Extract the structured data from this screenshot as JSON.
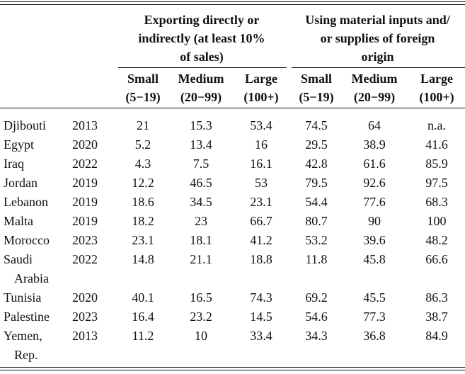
{
  "header": {
    "group1": {
      "line1": "Exporting directly or",
      "line2": "indirectly (at least 10%",
      "line3": "of sales)"
    },
    "group2": {
      "line1": "Using material inputs and/",
      "line2": "or supplies of foreign",
      "line3": "origin"
    },
    "subheaders": [
      {
        "name": "Small",
        "range": "(5−19)"
      },
      {
        "name": "Medium",
        "range": "(20−99)"
      },
      {
        "name": "Large",
        "range": "(100+)"
      },
      {
        "name": "Small",
        "range": "(5−19)"
      },
      {
        "name": "Medium",
        "range": "(20−99)"
      },
      {
        "name": "Large",
        "range": "(100+)"
      }
    ]
  },
  "rows": [
    {
      "country": [
        "Djibouti"
      ],
      "year": "2013",
      "values": [
        "21",
        "15.3",
        "53.4",
        "74.5",
        "64",
        "n.a."
      ]
    },
    {
      "country": [
        "Egypt"
      ],
      "year": "2020",
      "values": [
        "5.2",
        "13.4",
        "16",
        "29.5",
        "38.9",
        "41.6"
      ]
    },
    {
      "country": [
        "Iraq"
      ],
      "year": "2022",
      "values": [
        "4.3",
        "7.5",
        "16.1",
        "42.8",
        "61.6",
        "85.9"
      ]
    },
    {
      "country": [
        "Jordan"
      ],
      "year": "2019",
      "values": [
        "12.2",
        "46.5",
        "53",
        "79.5",
        "92.6",
        "97.5"
      ]
    },
    {
      "country": [
        "Lebanon"
      ],
      "year": "2019",
      "values": [
        "18.6",
        "34.5",
        "23.1",
        "54.4",
        "77.6",
        "68.3"
      ]
    },
    {
      "country": [
        "Malta"
      ],
      "year": "2019",
      "values": [
        "18.2",
        "23",
        "66.7",
        "80.7",
        "90",
        "100"
      ]
    },
    {
      "country": [
        "Morocco"
      ],
      "year": "2023",
      "values": [
        "23.1",
        "18.1",
        "41.2",
        "53.2",
        "39.6",
        "48.2"
      ]
    },
    {
      "country": [
        "Saudi",
        "Arabia"
      ],
      "year": "2022",
      "values": [
        "14.8",
        "21.1",
        "18.8",
        "11.8",
        "45.8",
        "66.6"
      ]
    },
    {
      "country": [
        "Tunisia"
      ],
      "year": "2020",
      "values": [
        "40.1",
        "16.5",
        "74.3",
        "69.2",
        "45.5",
        "86.3"
      ]
    },
    {
      "country": [
        "Palestine"
      ],
      "year": "2023",
      "values": [
        "16.4",
        "23.2",
        "14.5",
        "54.6",
        "77.3",
        "38.7"
      ]
    },
    {
      "country": [
        "Yemen,",
        "Rep."
      ],
      "year": "2013",
      "values": [
        "11.2",
        "10",
        "33.4",
        "34.3",
        "36.8",
        "84.9"
      ]
    }
  ]
}
